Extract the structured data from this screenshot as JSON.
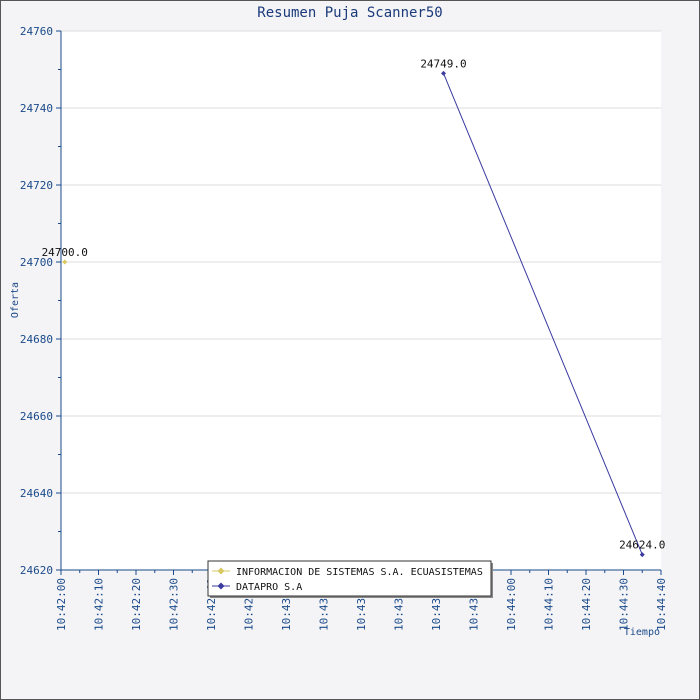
{
  "chart_data": {
    "type": "line",
    "title": "Resumen Puja Scanner50",
    "xlabel": "Tiempo",
    "ylabel": "Oferta",
    "xlim": [
      "10:42:00",
      "10:44:40"
    ],
    "ylim": [
      24620,
      24760
    ],
    "y_ticks": [
      24620,
      24640,
      24660,
      24680,
      24700,
      24720,
      24740,
      24760
    ],
    "x_ticks": [
      "10:42:00",
      "10:42:10",
      "10:42:20",
      "10:42:30",
      "10:42:40",
      "10:42:50",
      "10:43:00",
      "10:43:10",
      "10:43:20",
      "10:43:30",
      "10:43:40",
      "10:43:50",
      "10:44:00",
      "10:44:10",
      "10:44:20",
      "10:44:30",
      "10:44:40"
    ],
    "grid": true,
    "legend_position": "bottom-center",
    "series": [
      {
        "name": "INFORMACION DE SISTEMAS S.A. ECUASISTEMAS",
        "color": "#d8c860",
        "points": [
          {
            "x": "10:42:01",
            "y": 24700,
            "label": "24700.0"
          }
        ]
      },
      {
        "name": "DATAPRO S.A",
        "color": "#3a3aa0",
        "points": [
          {
            "x": "10:43:42",
            "y": 24749,
            "label": "24749.0"
          },
          {
            "x": "10:44:35",
            "y": 24624,
            "label": "24624.0"
          }
        ]
      }
    ]
  }
}
